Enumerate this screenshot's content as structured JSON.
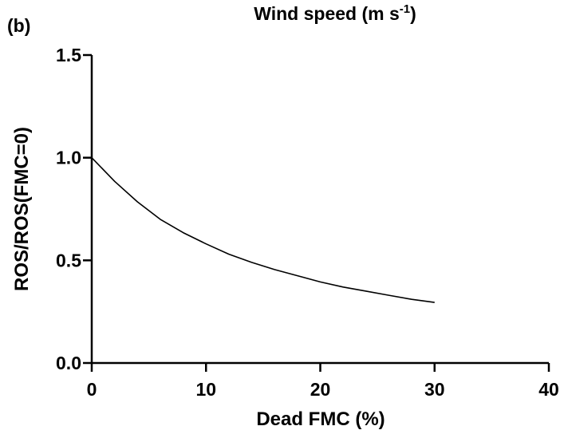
{
  "panel_label": "(b)",
  "chart_data": {
    "type": "line",
    "title": "Wind speed (m s",
    "title_superscript": "-1",
    "title_suffix": ")",
    "xlabel": "Dead FMC (%)",
    "ylabel": "ROS/ROS(FMC=0)",
    "xlim": [
      0,
      40
    ],
    "ylim": [
      0,
      1.5
    ],
    "x_ticks": [
      "0",
      "10",
      "20",
      "30",
      "40"
    ],
    "y_ticks": [
      "0.0",
      "0.5",
      "1.0",
      "1.5"
    ],
    "grid": false,
    "series": [
      {
        "color": "#000000",
        "x": [
          0,
          2,
          4,
          6,
          8,
          10,
          12,
          14,
          16,
          18,
          20,
          22,
          24,
          26,
          28,
          30
        ],
        "y": [
          1.0,
          0.885,
          0.785,
          0.7,
          0.635,
          0.58,
          0.53,
          0.49,
          0.455,
          0.425,
          0.395,
          0.37,
          0.35,
          0.33,
          0.31,
          0.295
        ]
      }
    ]
  }
}
